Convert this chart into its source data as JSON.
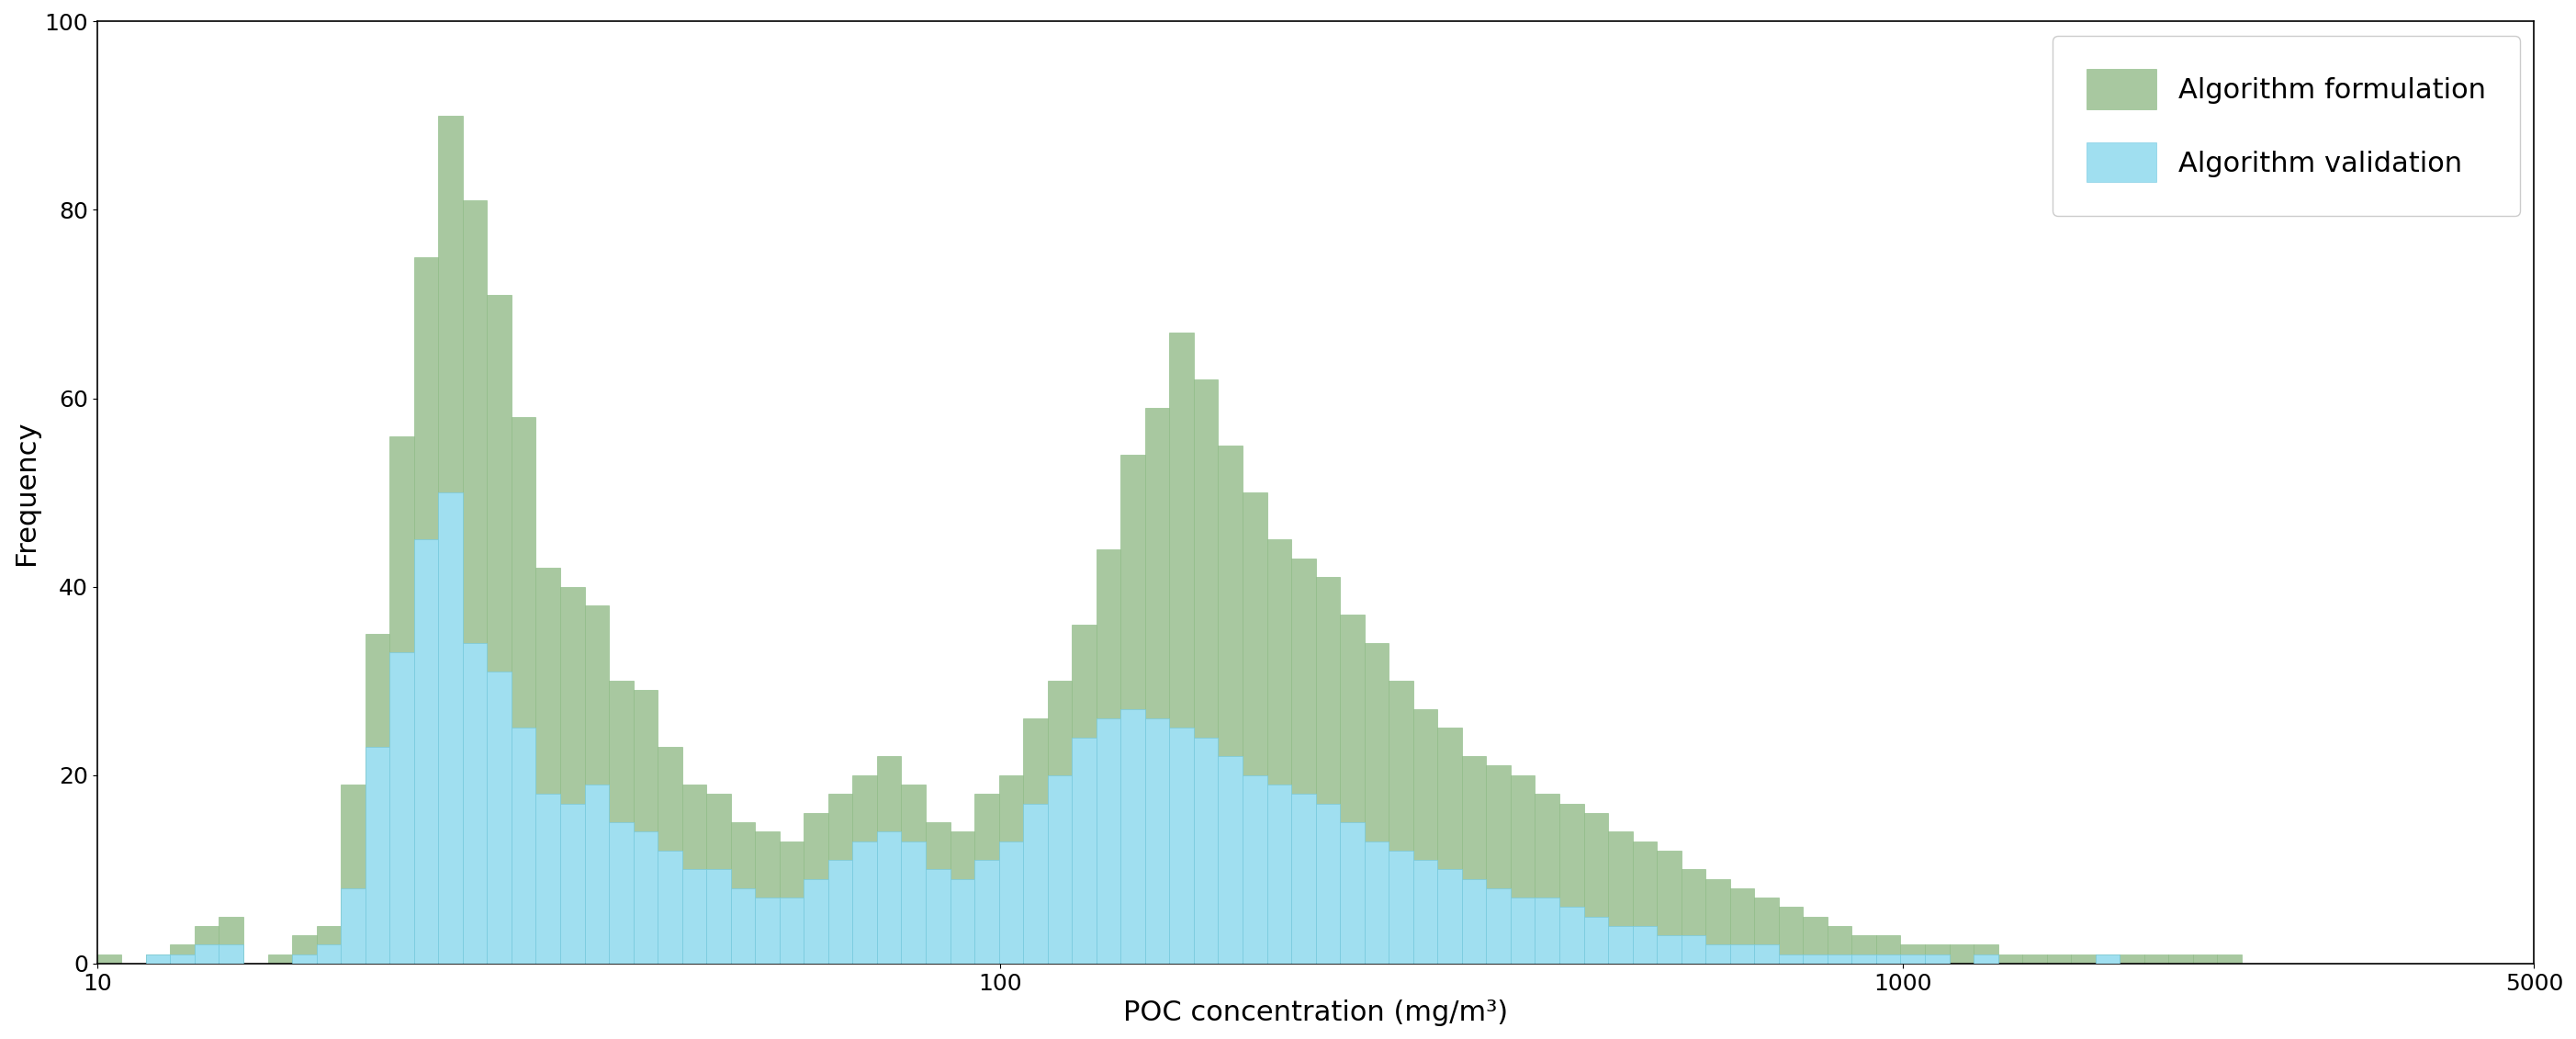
{
  "xlabel": "POC concentration (mg/m³)",
  "ylabel": "Frequency",
  "xlim": [
    10,
    5000
  ],
  "ylim": [
    0,
    100
  ],
  "yticks": [
    0,
    20,
    40,
    60,
    80,
    100
  ],
  "color_formulation": "#a8c8a0",
  "color_validation": "#a0dff0",
  "edge_formulation": "#88b880",
  "edge_validation": "#70c8e0",
  "label_formulation": "Algorithm formulation",
  "label_validation": "Algorithm validation",
  "legend_fontsize": 22,
  "axis_fontsize": 22,
  "tick_fontsize": 18,
  "background_color": "#ffffff",
  "green_counts": [
    1,
    0,
    1,
    2,
    4,
    5,
    0,
    1,
    3,
    4,
    19,
    35,
    56,
    75,
    90,
    81,
    71,
    58,
    42,
    40,
    38,
    30,
    29,
    23,
    19,
    18,
    15,
    14,
    13,
    16,
    18,
    20,
    22,
    19,
    15,
    14,
    18,
    20,
    26,
    30,
    36,
    44,
    54,
    59,
    67,
    62,
    55,
    50,
    45,
    43,
    41,
    37,
    34,
    30,
    27,
    25,
    22,
    21,
    20,
    18,
    17,
    16,
    14,
    13,
    12,
    10,
    9,
    8,
    7,
    6,
    5,
    4,
    3,
    3,
    2,
    2,
    2,
    2,
    1,
    1,
    1,
    1,
    1,
    1,
    1,
    1,
    1,
    1,
    0,
    0,
    0,
    0,
    0,
    0,
    0,
    0,
    0,
    0,
    0,
    0
  ],
  "blue_counts": [
    0,
    0,
    1,
    1,
    2,
    2,
    0,
    0,
    1,
    2,
    8,
    23,
    33,
    45,
    50,
    34,
    31,
    25,
    18,
    17,
    19,
    15,
    14,
    12,
    10,
    10,
    8,
    7,
    7,
    9,
    11,
    13,
    14,
    13,
    10,
    9,
    11,
    13,
    17,
    20,
    24,
    26,
    27,
    26,
    25,
    24,
    22,
    20,
    19,
    18,
    17,
    15,
    13,
    12,
    11,
    10,
    9,
    8,
    7,
    7,
    6,
    5,
    4,
    4,
    3,
    3,
    2,
    2,
    2,
    1,
    1,
    1,
    1,
    1,
    1,
    1,
    0,
    1,
    0,
    0,
    0,
    0,
    1,
    0,
    0,
    0,
    0,
    0,
    0,
    0,
    0,
    0,
    0,
    0,
    0,
    0,
    0,
    0,
    0,
    0
  ]
}
